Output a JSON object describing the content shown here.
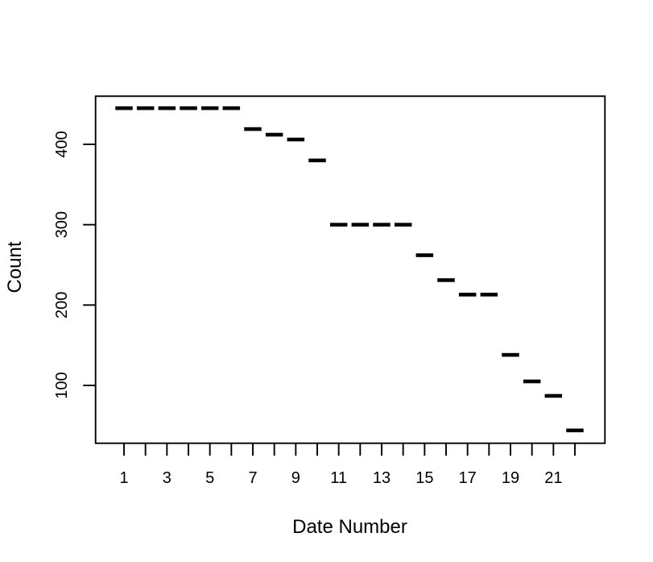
{
  "figure": {
    "background_color": "#ffffff",
    "plot_color": "#000000"
  },
  "chart_data": {
    "type": "scatter",
    "marker": "horizontal-dash",
    "title": "",
    "xlabel": "Date Number",
    "ylabel": "Count",
    "x": [
      1,
      2,
      3,
      4,
      5,
      6,
      7,
      8,
      9,
      10,
      11,
      12,
      13,
      14,
      15,
      16,
      17,
      18,
      19,
      20,
      21,
      22
    ],
    "y": [
      445,
      445,
      445,
      445,
      445,
      445,
      419,
      412,
      406,
      380,
      300,
      300,
      300,
      300,
      262,
      231,
      213,
      213,
      138,
      105,
      87,
      44
    ],
    "x_tick_positions": [
      1,
      2,
      3,
      4,
      5,
      6,
      7,
      8,
      9,
      10,
      11,
      12,
      13,
      14,
      15,
      16,
      17,
      18,
      19,
      20,
      21,
      22
    ],
    "x_tick_labels": [
      "1",
      "3",
      "5",
      "7",
      "9",
      "11",
      "13",
      "15",
      "17",
      "19",
      "21"
    ],
    "x_tick_label_values": [
      1,
      3,
      5,
      7,
      9,
      11,
      13,
      15,
      17,
      19,
      21
    ],
    "y_tick_values": [
      100,
      200,
      300,
      400
    ],
    "y_tick_labels": [
      "100",
      "200",
      "300",
      "400"
    ],
    "xlim": [
      -0.3,
      23.4
    ],
    "ylim": [
      28,
      461
    ],
    "grid": false,
    "legend": null
  }
}
